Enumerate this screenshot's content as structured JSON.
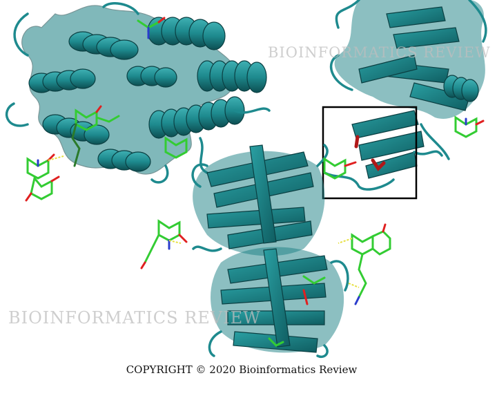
{
  "watermark_top": "BIOINFORMATICS REVIEW",
  "watermark_bottom": "BIOINFORMATICS REVIEW",
  "copyright": "COPYRIGHT © 2020 Bioinformatics Review",
  "colors": {
    "ribbon": "#1e8a8e",
    "ribbon_dark": "#10585c",
    "ribbon_light": "#3fb0b3",
    "ligand_carbon": "#33cc33",
    "ligand_oxygen": "#e02020",
    "ligand_nitrogen": "#2a3ccc",
    "highlight_residue": "#b01818",
    "hbond": "#e6e040",
    "box_outline": "#000000"
  }
}
